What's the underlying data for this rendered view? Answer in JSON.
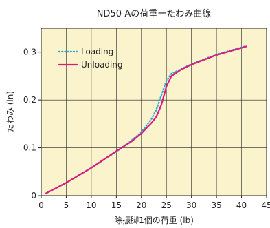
{
  "chart_data": {
    "type": "line",
    "title": "ND50-Aの荷重ーたわみ曲線",
    "xlabel": "除振脚1個の荷重 (lb)",
    "ylabel": "たわみ (in)",
    "xlim": [
      0,
      45
    ],
    "ylim": [
      0,
      0.35
    ],
    "x_ticks": [
      "0",
      "5",
      "10",
      "15",
      "20",
      "25",
      "30",
      "35",
      "40",
      "45"
    ],
    "y_ticks": [
      "0",
      "0.1",
      "0.2",
      "0.3"
    ],
    "grid": true,
    "legend": "top-left",
    "series": [
      {
        "name": "Loading",
        "style": "dotted",
        "color": "#29a9d6",
        "points": [
          [
            1,
            0.005
          ],
          [
            5,
            0.027
          ],
          [
            10,
            0.058
          ],
          [
            15,
            0.092
          ],
          [
            18,
            0.115
          ],
          [
            20,
            0.133
          ],
          [
            22,
            0.16
          ],
          [
            23,
            0.18
          ],
          [
            24,
            0.21
          ],
          [
            25,
            0.24
          ],
          [
            26,
            0.255
          ],
          [
            28,
            0.265
          ],
          [
            30,
            0.275
          ],
          [
            35,
            0.295
          ],
          [
            41,
            0.313
          ]
        ]
      },
      {
        "name": "Unloading",
        "style": "solid",
        "color": "#e0197d",
        "points": [
          [
            1,
            0.005
          ],
          [
            5,
            0.027
          ],
          [
            10,
            0.058
          ],
          [
            15,
            0.093
          ],
          [
            18,
            0.113
          ],
          [
            20,
            0.13
          ],
          [
            22,
            0.152
          ],
          [
            23,
            0.165
          ],
          [
            24,
            0.19
          ],
          [
            25,
            0.228
          ],
          [
            26,
            0.25
          ],
          [
            28,
            0.264
          ],
          [
            30,
            0.274
          ],
          [
            35,
            0.294
          ],
          [
            41,
            0.312
          ]
        ]
      }
    ]
  }
}
